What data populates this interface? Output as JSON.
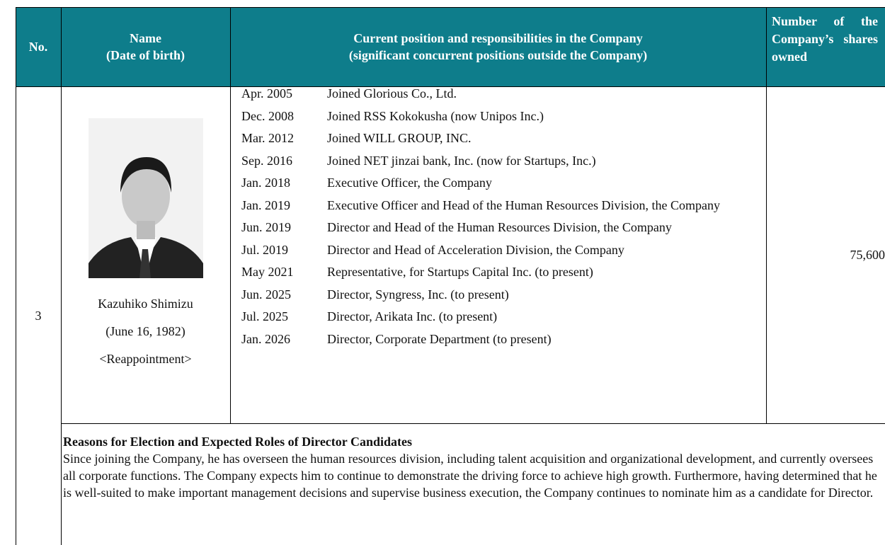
{
  "header": {
    "no": "No.",
    "name": "Name",
    "birth_label": "(Date of birth)",
    "position": "Current position and responsibilities in the Company",
    "position_sub": "(significant concurrent positions outside the Company)",
    "shares": "Number of the Company’s shares owned"
  },
  "candidate": {
    "no": "3",
    "name": "Kazuhiko Shimizu",
    "birth": "(June 16, 1982)",
    "status": "<Reappointment>",
    "shares": "75,600",
    "history": [
      {
        "date": "Apr. 2005",
        "text": "Joined Glorious Co., Ltd."
      },
      {
        "date": "Dec. 2008",
        "text": "Joined RSS Kokokusha (now Unipos Inc.)"
      },
      {
        "date": "Mar. 2012",
        "text": "Joined WILL GROUP, INC."
      },
      {
        "date": "Sep. 2016",
        "text": "Joined NET jinzai bank, Inc. (now for Startups, Inc.)"
      },
      {
        "date": "Jan. 2018",
        "text": "Executive Officer, the Company"
      },
      {
        "date": "Jan. 2019",
        "text": "Executive Officer and Head of the Human Resources Division, the Company"
      },
      {
        "date": "Jun. 2019",
        "text": "Director and Head of the Human Resources Division, the Company"
      },
      {
        "date": "Jul. 2019",
        "text": "Director and Head of Acceleration Division, the Company"
      },
      {
        "date": "May 2021",
        "text": "Representative, for Startups Capital Inc. (to present)"
      },
      {
        "date": "Jun. 2025",
        "text": "Director, Syngress, Inc. (to present)"
      },
      {
        "date": "Jul. 2025",
        "text": "Director, Arikata Inc. (to present)"
      },
      {
        "date": "Jan. 2026",
        "text": "Director, Corporate Department (to present)"
      }
    ]
  },
  "reasons": {
    "title": "Reasons for Election and Expected Roles of Director Candidates",
    "body": "Since joining the Company, he has overseen the human resources division, including talent acquisition and organizational development, and currently oversees all corporate functions. The Company expects him to continue to demonstrate the driving force to achieve high growth. Furthermore, having determined that he is well-suited to make important management decisions and supervise business execution, the Company continues to nominate him as a candidate for Director."
  }
}
